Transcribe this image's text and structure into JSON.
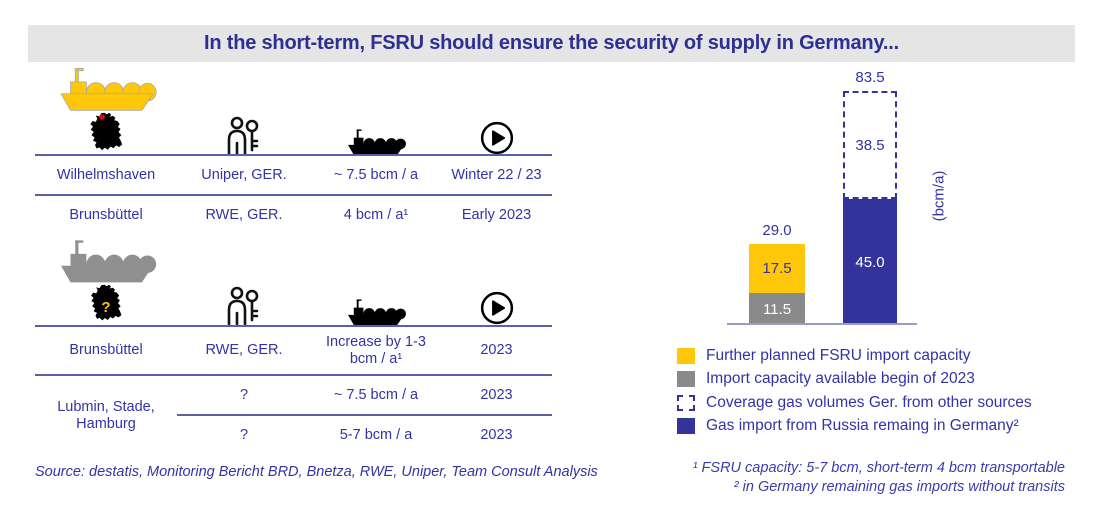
{
  "title": "In the short-term, FSRU should ensure the security of supply in Germany...",
  "colors": {
    "title_text": "#2D2F92",
    "body_text": "#3333A6",
    "bar_blue": "#33339B",
    "bar_yellow": "#FFC709",
    "bar_gray": "#8A8A8A",
    "ship_gray": "#909090",
    "table_line": "#5C5FA8",
    "axis_line": "#9B9BC8",
    "title_background": "#E5E5E5",
    "map_dot_red": "#E30613"
  },
  "column_icons": [
    "germany-map-icon",
    "owner-key-icon",
    "lng-tanker-icon",
    "start-play-icon"
  ],
  "table_upper": {
    "ship_icon": "lng-tanker-yellow",
    "rows": [
      {
        "location": "Wilhelmshaven",
        "owner": "Uniper, GER.",
        "capacity": "~ 7.5 bcm / a",
        "start": "Winter 22 / 23"
      },
      {
        "location": "Brunsbüttel",
        "owner": "RWE, GER.",
        "capacity": "4 bcm / a¹",
        "start": "Early 2023"
      }
    ]
  },
  "table_lower": {
    "ship_icon": "lng-tanker-gray",
    "map_question_mark": "?",
    "row1": {
      "location": "Brunsbüttel",
      "owner": "RWE, GER.",
      "capacity": "Increase by 1-3 bcm / a¹",
      "start": "2023"
    },
    "location_span": "Lubmin, Stade, Hamburg",
    "row2": {
      "owner": "?",
      "capacity": "~ 7.5 bcm / a",
      "start": "2023"
    },
    "row3": {
      "owner": "?",
      "capacity": "5-7 bcm / a",
      "start": "2023"
    }
  },
  "chart_data": {
    "type": "bar",
    "stacked": true,
    "ylabel": "(bcm/a)",
    "grid": false,
    "axis": "baseline only, no ticks or category labels",
    "bars": [
      {
        "total": 29.0,
        "total_label": "29.0",
        "segments": [
          {
            "name": "Import capacity available begin of 2023",
            "value": 11.5,
            "label": "11.5",
            "color": "#8A8A8A"
          },
          {
            "name": "Further planned FSRU import capacity",
            "value": 17.5,
            "label": "17.5",
            "color": "#FFC709"
          }
        ]
      },
      {
        "total": 83.5,
        "total_label": "83.5",
        "segments": [
          {
            "name": "Gas import from Russia remaing in Germany",
            "value": 45.0,
            "label": "45.0",
            "color": "#33339B"
          },
          {
            "name": "Coverage gas volumes Ger. from other sources",
            "value": 38.5,
            "label": "38.5",
            "color": "white-dashed-outline"
          }
        ]
      }
    ]
  },
  "legend": [
    {
      "swatch": "yellow",
      "label": "Further planned FSRU import capacity"
    },
    {
      "swatch": "gray",
      "label": "Import capacity available begin of 2023"
    },
    {
      "swatch": "dashed",
      "label": "Coverage gas volumes Ger. from other sources"
    },
    {
      "swatch": "blue",
      "label": "Gas import from Russia remaing in Germany²"
    }
  ],
  "footnotes": {
    "source": "Source: destatis, Monitoring Bericht BRD, Bnetza, RWE, Uniper, Team Consult Analysis",
    "note1": "¹ FSRU capacity: 5-7 bcm, short-term 4 bcm transportable",
    "note2": "² in Germany remaining gas imports without transits"
  }
}
